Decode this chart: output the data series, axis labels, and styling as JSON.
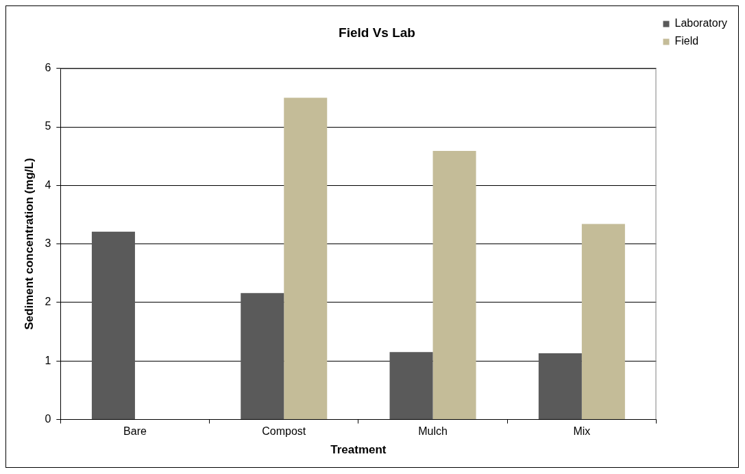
{
  "chart_data": {
    "type": "bar",
    "title": "Field Vs Lab",
    "xlabel": "Treatment",
    "ylabel": "Sediment concentration (mg/L)",
    "categories": [
      "Bare",
      "Compost",
      "Mulch",
      "Mix"
    ],
    "series": [
      {
        "name": "Laboratory",
        "color": "#5a5a5a",
        "values": [
          3.21,
          2.16,
          1.15,
          1.13
        ]
      },
      {
        "name": "Field",
        "color": "#c4bc98",
        "values": [
          null,
          5.5,
          4.59,
          3.34
        ]
      }
    ],
    "ylim": [
      0,
      6
    ],
    "yticks": [
      0,
      1,
      2,
      3,
      4,
      5,
      6
    ],
    "grid": "y",
    "legend": "top right"
  }
}
